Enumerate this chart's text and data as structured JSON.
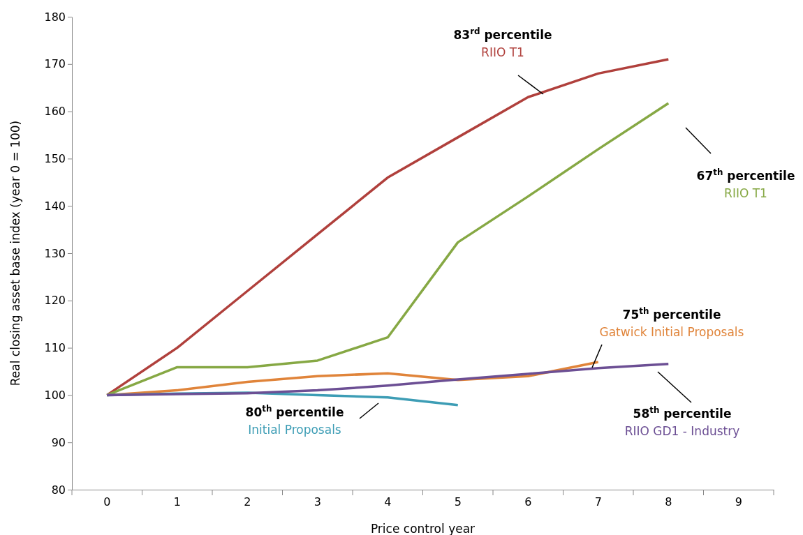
{
  "chart_data": {
    "type": "line",
    "xlabel": "Price control year",
    "ylabel": "Real closing asset base index (year 0 = 100)",
    "categories": [
      "0",
      "1",
      "2",
      "3",
      "4",
      "5",
      "6",
      "7",
      "8",
      "9"
    ],
    "series": [
      {
        "name": "RIIO T1",
        "color": "#b0403c",
        "values": [
          100,
          110,
          122,
          134,
          146,
          154.5,
          163,
          168,
          171,
          null
        ]
      },
      {
        "name": "RIIO T1",
        "color": "#86a844",
        "values": [
          100,
          105.9,
          105.9,
          107.3,
          112.2,
          132.3,
          142,
          152,
          161.7,
          null
        ]
      },
      {
        "name": "Gatwick Initial Proposals",
        "color": "#e0843a",
        "values": [
          100,
          101,
          102.8,
          104,
          104.6,
          103.2,
          104,
          107,
          null,
          null
        ]
      },
      {
        "name": "Initial Proposals",
        "color": "#3d9db5",
        "values": [
          100,
          100.3,
          100.5,
          100,
          99.5,
          97.9,
          null,
          null,
          null,
          null
        ]
      },
      {
        "name": "RIIO GD1 - Industry",
        "color": "#6c4f94",
        "values": [
          100,
          100.2,
          100.4,
          101,
          102,
          103.3,
          104.5,
          105.7,
          106.6,
          null
        ]
      }
    ],
    "annotations": [
      "83$^{rd}$ percentile",
      "67$^{th}$ percentile",
      "75$^{th}$ percentile",
      "80$^{th}$ percentile",
      "58$^{th}$ percentile"
    ],
    "ylim": [
      80,
      180
    ],
    "yticks": [
      80,
      90,
      100,
      110,
      120,
      130,
      140,
      150,
      160,
      170,
      180
    ],
    "grid": false,
    "legend": false,
    "marker": "none",
    "line_style": "solid"
  }
}
